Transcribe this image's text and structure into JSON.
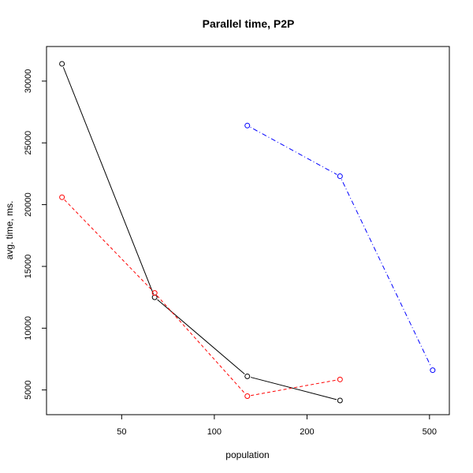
{
  "chart_data": {
    "type": "line",
    "title": "Parallel time, P2P",
    "xlabel": "population",
    "ylabel": "avg. time, ms.",
    "x_scale": "log",
    "xlim": [
      28.5,
      580
    ],
    "ylim": [
      3000,
      32800
    ],
    "x_ticks": [
      50,
      100,
      200,
      500
    ],
    "x_tick_labels": [
      "50",
      "100",
      "200",
      "500"
    ],
    "y_ticks": [
      5000,
      10000,
      15000,
      20000,
      25000,
      30000
    ],
    "y_tick_labels": [
      "5000",
      "10000",
      "15000",
      "20000",
      "25000",
      "30000"
    ],
    "grid": false,
    "legend": false,
    "series": [
      {
        "color": "#000000",
        "line_style": "solid",
        "marker": "open-circle",
        "points": [
          [
            32,
            31400
          ],
          [
            64,
            12500
          ],
          [
            128,
            6100
          ],
          [
            256,
            4150
          ]
        ]
      },
      {
        "color": "#ff0000",
        "line_style": "dashed",
        "marker": "open-circle",
        "points": [
          [
            32,
            20600
          ],
          [
            64,
            12850
          ],
          [
            128,
            4500
          ],
          [
            256,
            5850
          ]
        ]
      },
      {
        "color": "#0000ff",
        "line_style": "dotdash",
        "marker": "open-circle",
        "points": [
          [
            128,
            26400
          ],
          [
            256,
            22300
          ],
          [
            512,
            6600
          ]
        ]
      }
    ]
  }
}
